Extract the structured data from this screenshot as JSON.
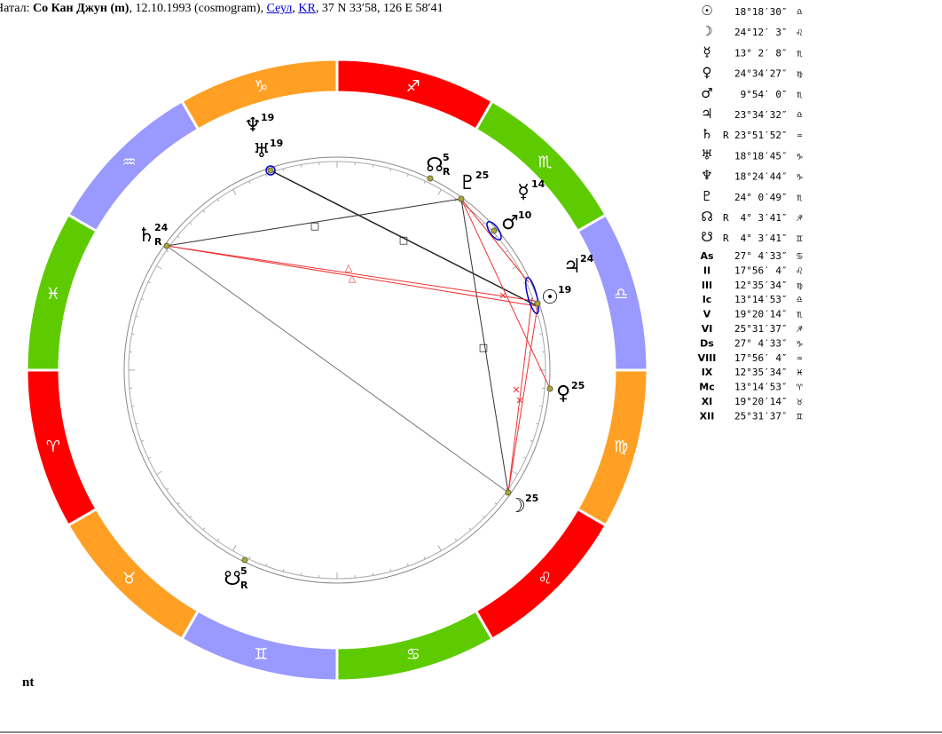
{
  "header": {
    "prefix": "Натал:",
    "name": "Со Кан Джун (m)",
    "date": ", 12.10.1993 (cosmogram), ",
    "city": "Сеул",
    "sep": ", ",
    "country": "KR",
    "coords": ", 37 N 33′58, 126 E 58′41"
  },
  "zodiac": {
    "signs": [
      "♈",
      "♉",
      "♊",
      "♋",
      "♌",
      "♍",
      "♎",
      "♏",
      "♐",
      "♑",
      "♒",
      "♓"
    ]
  },
  "planets": [
    {
      "glyph": "♆",
      "deg": 19
    },
    {
      "glyph": "♅",
      "deg": 19
    },
    {
      "glyph": "☊",
      "deg": 5,
      "retro": "R"
    },
    {
      "glyph": "♇",
      "deg": 25
    },
    {
      "glyph": "☿",
      "deg": 14
    },
    {
      "glyph": "♂",
      "deg": 10
    },
    {
      "glyph": "♃",
      "deg": 24
    },
    {
      "glyph": "☉",
      "deg": 19
    },
    {
      "glyph": "♀",
      "deg": 25
    },
    {
      "glyph": "☽",
      "deg": 25
    },
    {
      "glyph": "♄",
      "deg": 24,
      "retro": "R"
    },
    {
      "glyph": "☋",
      "deg": 5,
      "retro": "R"
    }
  ],
  "aspects": {
    "trine": "△",
    "sextile": "✕",
    "square": "□"
  },
  "table": {
    "rows": [
      [
        "☉",
        "",
        "18°18′30″",
        "♎"
      ],
      [
        "☽",
        "",
        "24°12′ 3″",
        "♌"
      ],
      [
        "☿",
        "",
        "13° 2′ 8″",
        "♏"
      ],
      [
        "♀",
        "",
        "24°34′27″",
        "♍"
      ],
      [
        "♂",
        "",
        " 9°54′ 0″",
        "♏"
      ],
      [
        "♃",
        "",
        "23°34′32″",
        "♎"
      ],
      [
        "♄",
        "R",
        "23°51′52″",
        "♒"
      ],
      [
        "♅",
        "",
        "18°18′45″",
        "♑"
      ],
      [
        "♆",
        "",
        "18°24′44″",
        "♑"
      ],
      [
        "♇",
        "",
        "24° 0′49″",
        "♏"
      ],
      [
        "☊",
        "R",
        " 4° 3′41″",
        "♐"
      ],
      [
        "☋",
        "R",
        " 4° 3′41″",
        "♊"
      ],
      [
        "As",
        "",
        "27° 4′33″",
        "♋"
      ],
      [
        "II",
        "",
        "17°56′ 4″",
        "♌"
      ],
      [
        "III",
        "",
        "12°35′34″",
        "♍"
      ],
      [
        "Ic",
        "",
        "13°14′53″",
        "♎"
      ],
      [
        "V",
        "",
        "19°20′14″",
        "♏"
      ],
      [
        "VI",
        "",
        "25°31′37″",
        "♐"
      ],
      [
        "Ds",
        "",
        "27° 4′33″",
        "♑"
      ],
      [
        "VIII",
        "",
        "17°56′ 4″",
        "♒"
      ],
      [
        "IX",
        "",
        "12°35′34″",
        "♓"
      ],
      [
        "Mc",
        "",
        "13°14′53″",
        "♈"
      ],
      [
        "XI",
        "",
        "19°20′14″",
        "♉"
      ],
      [
        "XII",
        "",
        "25°31′37″",
        "♊"
      ]
    ]
  },
  "footer": "nt"
}
